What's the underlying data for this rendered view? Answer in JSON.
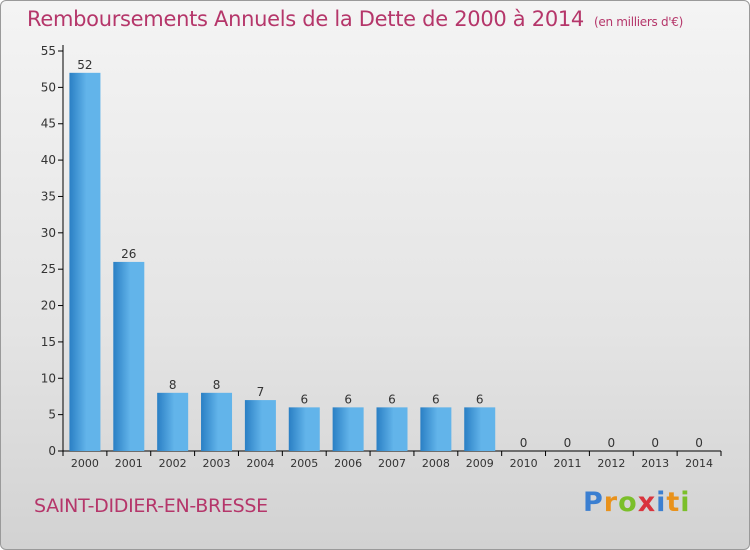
{
  "title": "Remboursements Annuels de la Dette de 2000 à 2014",
  "unit": "(en milliers d'€)",
  "commune": "SAINT-DIDIER-EN-BRESSE",
  "logo": {
    "text": "Proxiti",
    "letters": [
      {
        "char": "P",
        "color": "#3b7fd1"
      },
      {
        "char": "r",
        "color": "#e9921b"
      },
      {
        "char": "o",
        "color": "#7bbf2a"
      },
      {
        "char": "x",
        "color": "#d9343d"
      },
      {
        "char": "i",
        "color": "#3b7fd1"
      },
      {
        "char": "t",
        "color": "#e9921b"
      },
      {
        "char": "i",
        "color": "#7bbf2a"
      }
    ]
  },
  "colors": {
    "title": "#b5366a",
    "bar_light": "#62b4ea",
    "bar_dark": "#2a7fc4",
    "axis": "#000000",
    "grid": "#bbbbbb"
  },
  "chart_data": {
    "type": "bar",
    "categories": [
      "2000",
      "2001",
      "2002",
      "2003",
      "2004",
      "2005",
      "2006",
      "2007",
      "2008",
      "2009",
      "2010",
      "2011",
      "2012",
      "2013",
      "2014"
    ],
    "values": [
      52,
      26,
      8,
      8,
      7,
      6,
      6,
      6,
      6,
      6,
      0,
      0,
      0,
      0,
      0
    ],
    "ylim": [
      0,
      55
    ],
    "yticks": [
      0,
      5,
      10,
      15,
      20,
      25,
      30,
      35,
      40,
      45,
      50,
      55
    ],
    "grid": false,
    "data_labels": true
  }
}
